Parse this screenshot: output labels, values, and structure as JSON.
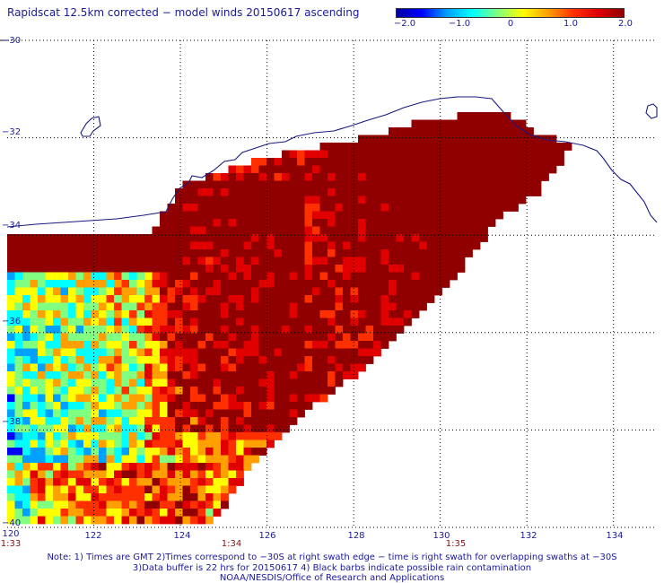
{
  "title": "Rapidscat 12.5km corrected − model winds 20150617 ascending",
  "colorbar": {
    "labels": [
      "−2.0",
      "−1.0",
      "0",
      "1.0",
      "2.0"
    ],
    "values": [
      -2.0,
      -1.0,
      0,
      1.0,
      2.0
    ],
    "range": [
      -2.0,
      2.0
    ],
    "colors": [
      "#0000a0",
      "#0000ff",
      "#00a0ff",
      "#00ffff",
      "#80ff80",
      "#ffff00",
      "#ffa000",
      "#ff3000",
      "#e00000",
      "#900000"
    ]
  },
  "map": {
    "lat_labels": [
      "−30",
      "−32",
      "−34",
      "−36",
      "−38",
      "−40"
    ],
    "lon_labels": [
      "120",
      "122",
      "124",
      "126",
      "128",
      "130",
      "132",
      "134"
    ],
    "lat_range": [
      -40,
      -30
    ],
    "lon_range": [
      120,
      135
    ],
    "coastline_color": "#1a1a80",
    "grid_color": "#000000"
  },
  "time_labels": [
    "1:33",
    "1:34",
    "1:35"
  ],
  "notes": [
    "Note: 1) Times are GMT 2)Times correspond to −30S at right swath edge − time is right swath for overlapping swaths at −30S",
    "3)Data buffer is 22 hrs for 20150617 4) Black barbs indicate possible rain contamination",
    "NOAA/NESDIS/Office of Research and Applications"
  ]
}
